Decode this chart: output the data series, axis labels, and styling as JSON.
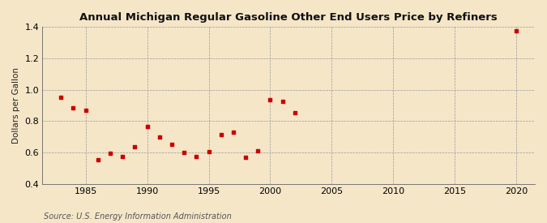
{
  "title": "Annual Michigan Regular Gasoline Other End Users Price by Refiners",
  "ylabel": "Dollars per Gallon",
  "source": "Source: U.S. Energy Information Administration",
  "background_color": "#f5e6c8",
  "point_color": "#cc0000",
  "xlim": [
    1981.5,
    2021.5
  ],
  "ylim": [
    0.4,
    1.4
  ],
  "xticks": [
    1985,
    1990,
    1995,
    2000,
    2005,
    2010,
    2015,
    2020
  ],
  "yticks": [
    0.4,
    0.6,
    0.8,
    1.0,
    1.2,
    1.4
  ],
  "data": [
    {
      "year": 1983,
      "value": 0.95
    },
    {
      "year": 1984,
      "value": 0.882
    },
    {
      "year": 1985,
      "value": 0.868
    },
    {
      "year": 1986,
      "value": 0.551
    },
    {
      "year": 1987,
      "value": 0.594
    },
    {
      "year": 1988,
      "value": 0.572
    },
    {
      "year": 1989,
      "value": 0.635
    },
    {
      "year": 1990,
      "value": 0.764
    },
    {
      "year": 1991,
      "value": 0.7
    },
    {
      "year": 1992,
      "value": 0.65
    },
    {
      "year": 1993,
      "value": 0.598
    },
    {
      "year": 1994,
      "value": 0.575
    },
    {
      "year": 1995,
      "value": 0.605
    },
    {
      "year": 1996,
      "value": 0.713
    },
    {
      "year": 1997,
      "value": 0.73
    },
    {
      "year": 1998,
      "value": 0.57
    },
    {
      "year": 1999,
      "value": 0.61
    },
    {
      "year": 2000,
      "value": 0.935
    },
    {
      "year": 2001,
      "value": 0.928
    },
    {
      "year": 2002,
      "value": 0.851
    },
    {
      "year": 2020,
      "value": 1.374
    }
  ]
}
